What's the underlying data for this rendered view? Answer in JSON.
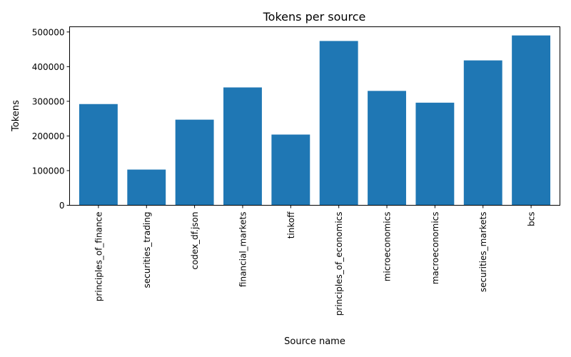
{
  "chart_data": {
    "type": "bar",
    "title": "Tokens per source",
    "xlabel": "Source name",
    "ylabel": "Tokens",
    "categories": [
      "principles_of_finance",
      "securities_trading",
      "codex_df.json",
      "financial_markets",
      "tinkoff",
      "principles_of_economics",
      "microeconomics",
      "macroeconomics",
      "securities_markets",
      "bcs"
    ],
    "values": [
      292000,
      103000,
      247000,
      340000,
      204000,
      474000,
      330000,
      296000,
      418000,
      490000
    ],
    "ylim": [
      0,
      515000
    ],
    "yticks": [
      0,
      100000,
      200000,
      300000,
      400000,
      500000
    ],
    "ytick_labels": [
      "0",
      "100000",
      "200000",
      "300000",
      "400000",
      "500000"
    ],
    "color": "#1f77b4",
    "grid": false,
    "legend": "none"
  }
}
